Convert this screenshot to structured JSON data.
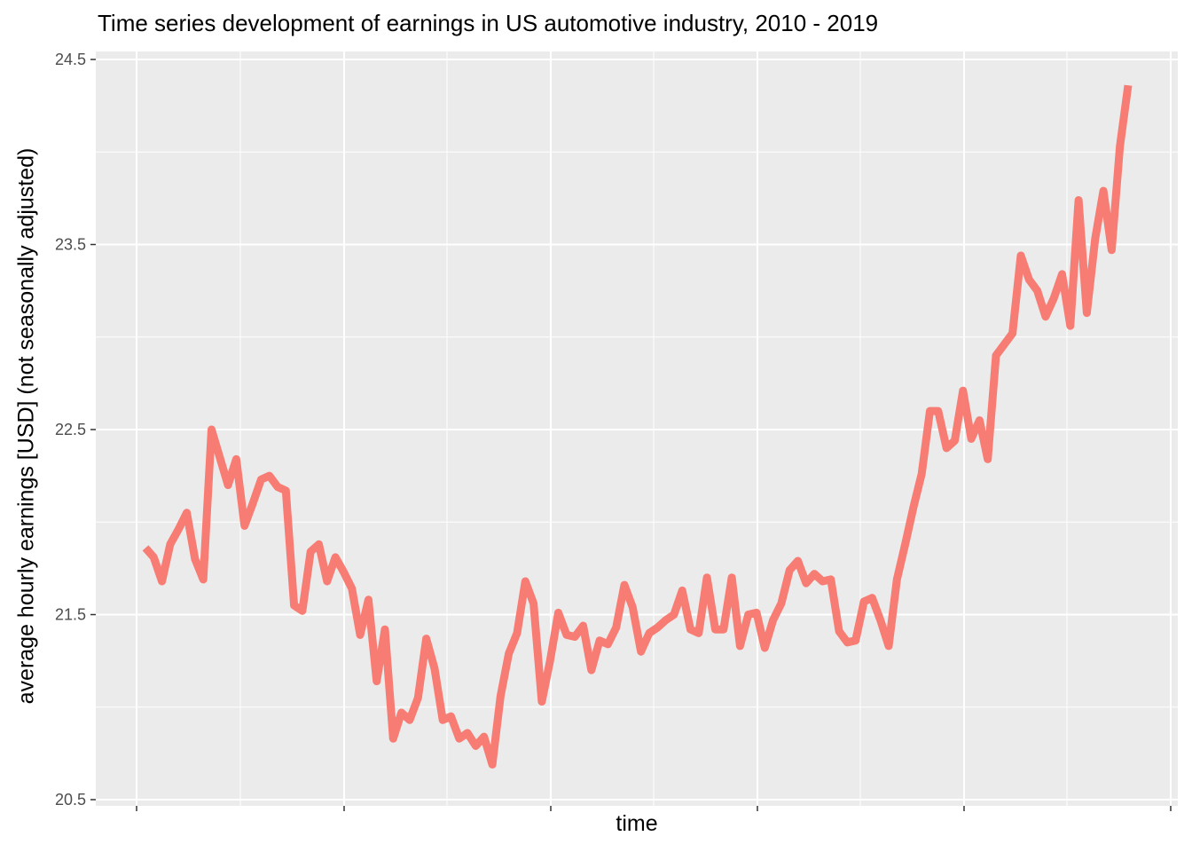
{
  "chart_data": {
    "type": "line",
    "title": "Time series development of earnings in US automotive industry, 2010 - 2019",
    "xlabel": "time",
    "ylabel": "average hourly earnings [USD] (not seasonally adjusted)",
    "ylim": [
      20.5,
      24.5
    ],
    "yticks": [
      "20.5",
      "21.5",
      "22.5",
      "23.5",
      "24.5"
    ],
    "ytick_values": [
      20.5,
      21.5,
      22.5,
      23.5,
      24.5
    ],
    "grid": true,
    "series_color": "#F8766D",
    "series": [
      {
        "name": "earnings",
        "values": [
          21.86,
          21.81,
          21.68,
          21.88,
          21.96,
          22.05,
          21.8,
          21.69,
          22.5,
          22.35,
          22.2,
          22.34,
          21.98,
          22.1,
          22.23,
          22.25,
          22.19,
          22.17,
          21.55,
          21.52,
          21.84,
          21.88,
          21.68,
          21.81,
          21.73,
          21.64,
          21.39,
          21.58,
          21.14,
          21.42,
          20.83,
          20.97,
          20.93,
          21.05,
          21.37,
          21.21,
          20.93,
          20.95,
          20.83,
          20.86,
          20.79,
          20.84,
          20.69,
          21.06,
          21.29,
          21.4,
          21.68,
          21.56,
          21.03,
          21.25,
          21.51,
          21.39,
          21.38,
          21.44,
          21.2,
          21.36,
          21.34,
          21.43,
          21.66,
          21.54,
          21.3,
          21.4,
          21.43,
          21.47,
          21.5,
          21.63,
          21.42,
          21.4,
          21.7,
          21.42,
          21.42,
          21.7,
          21.33,
          21.5,
          21.51,
          21.32,
          21.47,
          21.56,
          21.74,
          21.79,
          21.67,
          21.72,
          21.68,
          21.69,
          21.41,
          21.35,
          21.36,
          21.57,
          21.59,
          21.47,
          21.33,
          21.69,
          21.88,
          22.08,
          22.26,
          22.6,
          22.6,
          22.4,
          22.44,
          22.71,
          22.45,
          22.55,
          22.34,
          22.9,
          22.96,
          23.02,
          23.44,
          23.31,
          23.25,
          23.11,
          23.21,
          23.34,
          23.06,
          23.74,
          23.13,
          23.53,
          23.79,
          23.47,
          24.03,
          24.36
        ]
      }
    ]
  }
}
